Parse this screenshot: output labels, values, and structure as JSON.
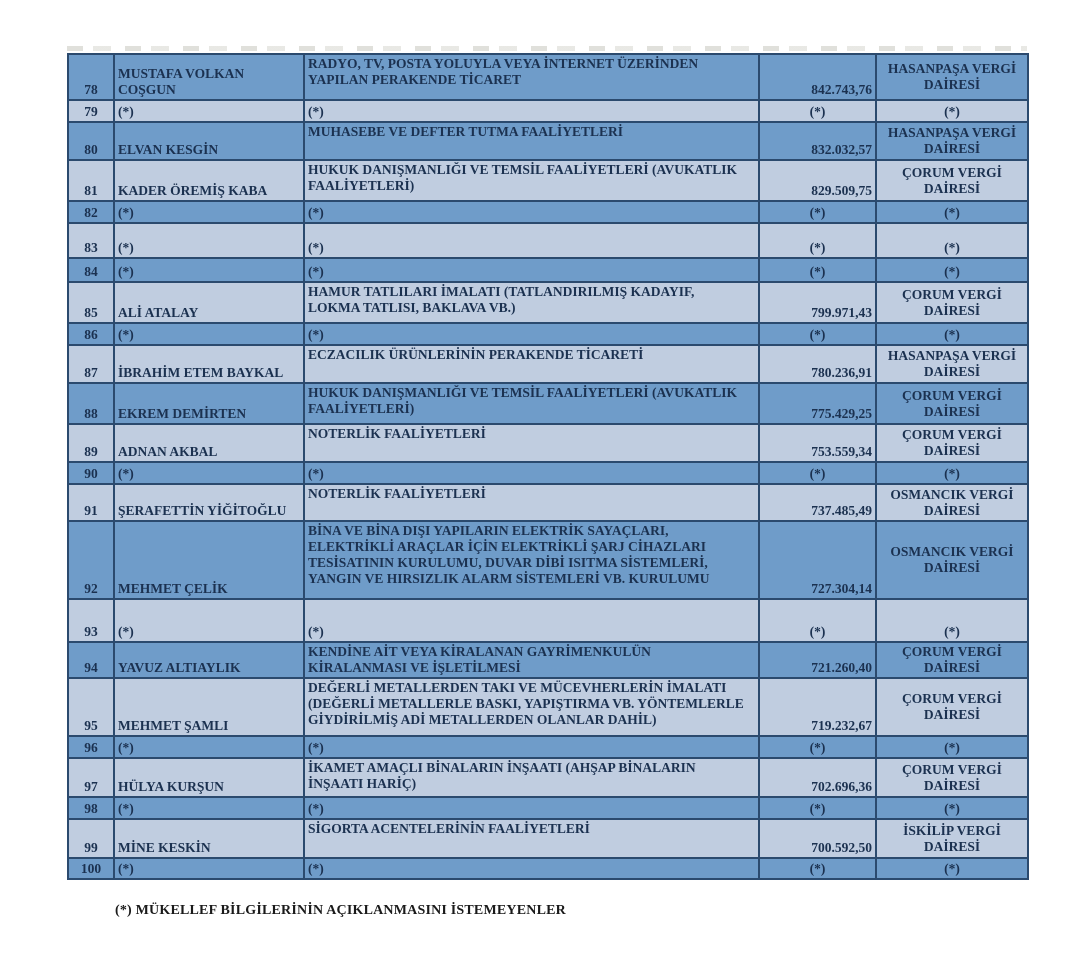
{
  "colors": {
    "row_dark": "#6f9cc9",
    "row_light": "#c0cde0",
    "border": "#2b4a6e",
    "text": "#1b3150"
  },
  "masked_value": "(*)",
  "footnote": "(*) MÜKELLEF BİLGİLERİNİN AÇIKLANMASINI İSTEMEYENLER",
  "table": {
    "columns": [
      "row_number",
      "name",
      "activity",
      "amount",
      "tax_office"
    ],
    "rows": [
      {
        "no": "78",
        "name": "MUSTAFA VOLKAN\nCOŞGUN",
        "activity": "RADYO, TV, POSTA YOLUYLA VEYA İNTERNET ÜZERİNDEN\nYAPILAN PERAKENDE TİCARET",
        "amount": "842.743,76",
        "office": "HASANPAŞA VERGİ\nDAİRESİ",
        "masked": false
      },
      {
        "no": "79",
        "name": "(*)",
        "activity": "(*)",
        "amount": "(*)",
        "office": "(*)",
        "masked": true
      },
      {
        "no": "80",
        "name": "ELVAN KESGİN",
        "activity": "MUHASEBE VE DEFTER TUTMA FAALİYETLERİ",
        "amount": "832.032,57",
        "office": "HASANPAŞA VERGİ\nDAİRESİ",
        "masked": false
      },
      {
        "no": "81",
        "name": "KADER ÖREMİŞ KABA",
        "activity": "HUKUK DANIŞMANLIĞI VE TEMSİL FAALİYETLERİ (AVUKATLIK\nFAALİYETLERİ)",
        "amount": "829.509,75",
        "office": "ÇORUM VERGİ\nDAİRESİ",
        "masked": false
      },
      {
        "no": "82",
        "name": "(*)",
        "activity": "(*)",
        "amount": "(*)",
        "office": "(*)",
        "masked": true
      },
      {
        "no": "83",
        "name": "(*)",
        "activity": "(*)",
        "amount": "(*)",
        "office": "(*)",
        "masked": true
      },
      {
        "no": "84",
        "name": "(*)",
        "activity": "(*)",
        "amount": "(*)",
        "office": "(*)",
        "masked": true
      },
      {
        "no": "85",
        "name": "ALİ ATALAY",
        "activity": "HAMUR TATLILARI İMALATI (TATLANDIRILMIŞ KADAYIF,\nLOKMA TATLISI, BAKLAVA VB.)",
        "amount": "799.971,43",
        "office": "ÇORUM VERGİ\nDAİRESİ",
        "masked": false
      },
      {
        "no": "86",
        "name": "(*)",
        "activity": "(*)",
        "amount": "(*)",
        "office": "(*)",
        "masked": true
      },
      {
        "no": "87",
        "name": "İBRAHİM ETEM BAYKAL",
        "activity": "ECZACILIK ÜRÜNLERİNİN PERAKENDE TİCARETİ",
        "amount": "780.236,91",
        "office": "HASANPAŞA VERGİ\nDAİRESİ",
        "masked": false
      },
      {
        "no": "88",
        "name": "EKREM DEMİRTEN",
        "activity": "HUKUK DANIŞMANLIĞI VE TEMSİL FAALİYETLERİ (AVUKATLIK\nFAALİYETLERİ)",
        "amount": "775.429,25",
        "office": "ÇORUM VERGİ\nDAİRESİ",
        "masked": false
      },
      {
        "no": "89",
        "name": "ADNAN AKBAL",
        "activity": "NOTERLİK FAALİYETLERİ",
        "amount": "753.559,34",
        "office": "ÇORUM VERGİ\nDAİRESİ",
        "masked": false
      },
      {
        "no": "90",
        "name": "(*)",
        "activity": "(*)",
        "amount": "(*)",
        "office": "(*)",
        "masked": true
      },
      {
        "no": "91",
        "name": "ŞERAFETTİN YİĞİTOĞLU",
        "activity": "NOTERLİK FAALİYETLERİ",
        "amount": "737.485,49",
        "office": "OSMANCIK VERGİ\nDAİRESİ",
        "masked": false
      },
      {
        "no": "92",
        "name": "MEHMET ÇELİK",
        "activity": "BİNA VE BİNA DIŞI YAPILARIN ELEKTRİK SAYAÇLARI,\nELEKTRİKLİ ARAÇLAR İÇİN ELEKTRİKLİ ŞARJ CİHAZLARI\nTESİSATININ KURULUMU, DUVAR DİBİ ISITMA SİSTEMLERİ,\nYANGIN VE HIRSIZLIK ALARM SİSTEMLERİ VB. KURULUMU",
        "amount": "727.304,14",
        "office": "OSMANCIK VERGİ\nDAİRESİ",
        "masked": false
      },
      {
        "no": "93",
        "name": "(*)",
        "activity": "(*)",
        "amount": "(*)",
        "office": "(*)",
        "masked": true
      },
      {
        "no": "94",
        "name": "YAVUZ ALTIAYLIK",
        "activity": "KENDİNE AİT VEYA KİRALANAN GAYRİMENKULÜN\nKİRALANMASI VE İŞLETİLMESİ",
        "amount": "721.260,40",
        "office": "ÇORUM VERGİ\nDAİRESİ",
        "masked": false
      },
      {
        "no": "95",
        "name": "MEHMET ŞAMLI",
        "activity": "DEĞERLİ METALLERDEN TAKI VE MÜCEVHERLERİN İMALATI\n(DEĞERLİ METALLERLE BASKI, YAPIŞTIRMA VB. YÖNTEMLERLE\nGİYDİRİLMİŞ ADİ METALLERDEN OLANLAR DAHİL)",
        "amount": "719.232,67",
        "office": "ÇORUM VERGİ\nDAİRESİ",
        "masked": false
      },
      {
        "no": "96",
        "name": "(*)",
        "activity": "(*)",
        "amount": "(*)",
        "office": "(*)",
        "masked": true
      },
      {
        "no": "97",
        "name": "HÜLYA KURŞUN",
        "activity": "İKAMET AMAÇLI BİNALARIN İNŞAATI (AHŞAP BİNALARIN\nİNŞAATI HARİÇ)",
        "amount": "702.696,36",
        "office": "ÇORUM VERGİ\nDAİRESİ",
        "masked": false
      },
      {
        "no": "98",
        "name": "(*)",
        "activity": "(*)",
        "amount": "(*)",
        "office": "(*)",
        "masked": true
      },
      {
        "no": "99",
        "name": "MİNE KESKİN",
        "activity": "SİGORTA ACENTELERİNİN FAALİYETLERİ",
        "amount": "700.592,50",
        "office": "İSKİLİP VERGİ\nDAİRESİ",
        "masked": false
      },
      {
        "no": "100",
        "name": "(*)",
        "activity": "(*)",
        "amount": "(*)",
        "office": "(*)",
        "masked": true
      }
    ]
  }
}
